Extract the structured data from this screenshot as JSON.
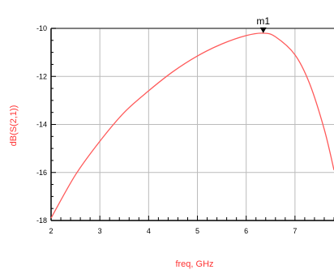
{
  "chart_data": {
    "type": "line",
    "xlabel": "freq, GHz",
    "ylabel": "dB(S(2,1))",
    "xlim": [
      2,
      7.8
    ],
    "ylim": [
      -18,
      -10
    ],
    "xticks": [
      "2",
      "3",
      "4",
      "5",
      "6",
      "7"
    ],
    "yticks": [
      "-10",
      "-12",
      "-14",
      "-16",
      "-18"
    ],
    "grid": true,
    "colors": {
      "series": "#ff5a5a",
      "axis_label": "#ff3333",
      "grid": "#bbbbbb"
    },
    "marker": {
      "label": "m1",
      "x": 6.35,
      "y": -10.2
    },
    "series": [
      {
        "x": [
          2.0,
          2.5,
          3.0,
          3.5,
          4.0,
          4.5,
          5.0,
          5.5,
          6.0,
          6.35,
          6.6,
          7.0,
          7.3,
          7.6,
          7.8
        ],
        "y": [
          -17.9,
          -16.1,
          -14.7,
          -13.5,
          -12.6,
          -11.8,
          -11.15,
          -10.65,
          -10.3,
          -10.2,
          -10.35,
          -11.1,
          -12.3,
          -14.2,
          -15.9
        ]
      }
    ]
  }
}
